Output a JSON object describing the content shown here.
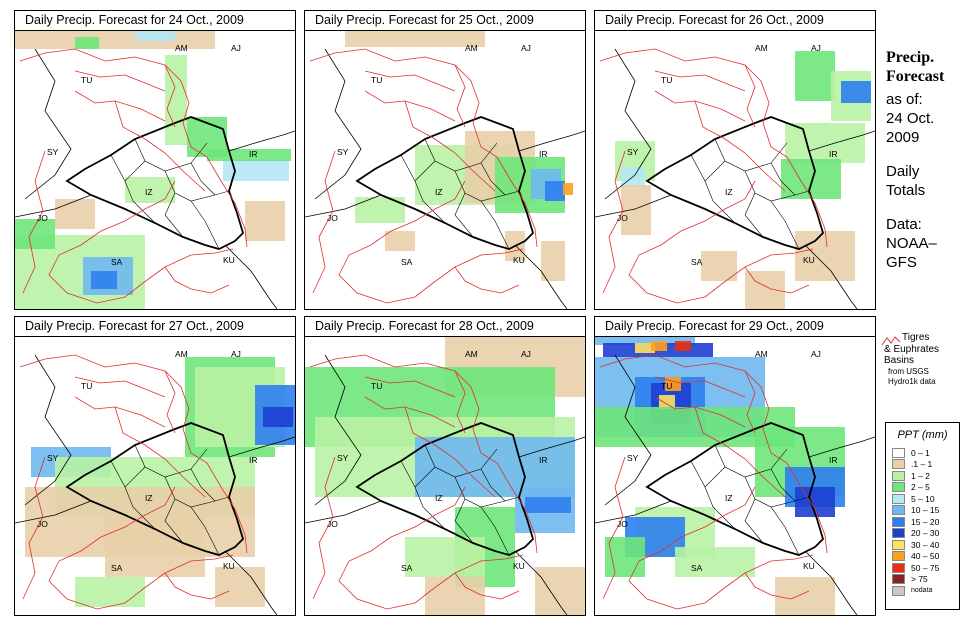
{
  "panels": [
    {
      "title": "Daily Precip. Forecast for  24 Oct., 2009"
    },
    {
      "title": "Daily Precip. Forecast for  25 Oct., 2009"
    },
    {
      "title": "Daily Precip. Forecast for  26 Oct., 2009"
    },
    {
      "title": "Daily Precip. Forecast for  27 Oct., 2009"
    },
    {
      "title": "Daily Precip. Forecast for  28 Oct., 2009"
    },
    {
      "title": "Daily Precip. Forecast for  29 Oct., 2009"
    }
  ],
  "country_labels": {
    "am": "AM",
    "aj": "AJ",
    "tu": "TU",
    "sy": "SY",
    "ir": "IR",
    "iz": "IZ",
    "jo": "JO",
    "sa": "SA",
    "ku": "KU"
  },
  "sidebar": {
    "title_line1": "Precip.",
    "title_line2": "Forecast",
    "asof": "as of:",
    "date_line1": "24 Oct.",
    "date_line2": "2009",
    "daily1": "Daily",
    "daily2": "Totals",
    "data1": "Data:",
    "data2": "NOAA–",
    "data3": "GFS"
  },
  "basin_legend": {
    "line1": "Tigres",
    "line2": "& Euphrates",
    "line3": "Basins",
    "src1": "from USGS",
    "src2": "Hydro1k data",
    "line_color": "#e03030"
  },
  "legend": {
    "title": "PPT (mm)",
    "items": [
      {
        "label": "0 – 1",
        "color": "#ffffff"
      },
      {
        "label": ".1 – 1",
        "color": "#e8cfa8"
      },
      {
        "label": "1 – 2",
        "color": "#b9f2a4"
      },
      {
        "label": "2 – 5",
        "color": "#6ee67a"
      },
      {
        "label": "5 – 10",
        "color": "#b4e8f5"
      },
      {
        "label": "10 – 15",
        "color": "#6fb8f0"
      },
      {
        "label": "15 – 20",
        "color": "#2f7ff0"
      },
      {
        "label": "20 – 30",
        "color": "#1d3fd0"
      },
      {
        "label": "30 – 40",
        "color": "#ffe060"
      },
      {
        "label": "40 – 50",
        "color": "#ffa020"
      },
      {
        "label": "50 – 75",
        "color": "#e83010"
      },
      {
        "label": "> 75",
        "color": "#8a2020"
      },
      {
        "label": "nodata",
        "color": "#c8c8c8"
      }
    ]
  }
}
